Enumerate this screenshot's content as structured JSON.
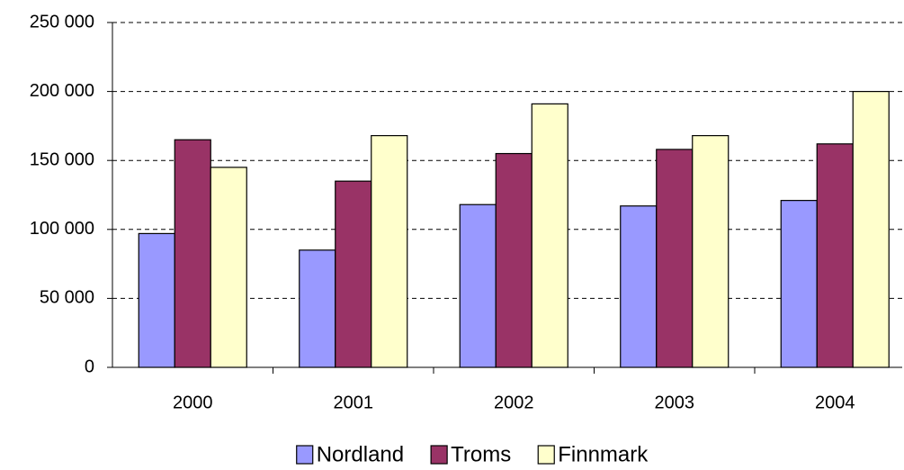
{
  "chart_data": {
    "type": "bar",
    "categories": [
      "2000",
      "2001",
      "2002",
      "2003",
      "2004"
    ],
    "series": [
      {
        "name": "Nordland",
        "color": "#9999ff",
        "values": [
          97000,
          85000,
          118000,
          117000,
          121000
        ]
      },
      {
        "name": "Troms",
        "color": "#993366",
        "values": [
          165000,
          135000,
          155000,
          158000,
          162000
        ]
      },
      {
        "name": "Finnmark",
        "color": "#ffffcc",
        "values": [
          145000,
          168000,
          191000,
          168000,
          200000
        ]
      }
    ],
    "ylim": [
      0,
      250000
    ],
    "yticks": [
      0,
      {
        "value": 50000,
        "label": "50 000"
      },
      {
        "value": 100000,
        "label": "100 000"
      },
      {
        "value": 150000,
        "label": "150 000"
      },
      {
        "value": 200000,
        "label": "200 000"
      },
      {
        "value": 250000,
        "label": "250 000"
      }
    ],
    "grid": true,
    "legend": "bottom"
  }
}
